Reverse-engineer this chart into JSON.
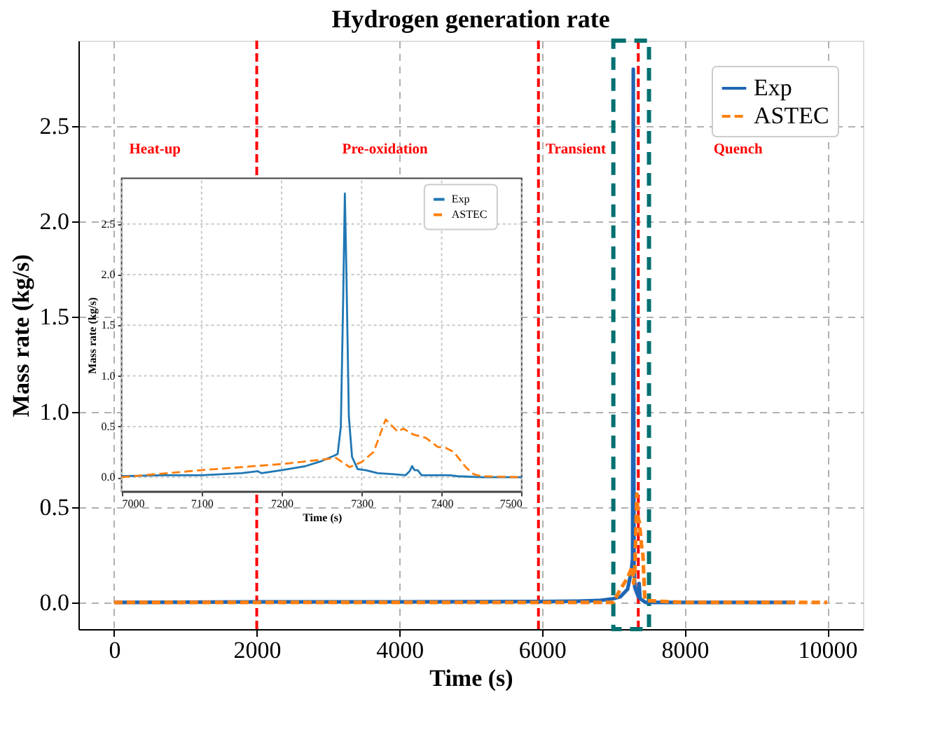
{
  "chart_data": [
    {
      "type": "line",
      "title": "Hydrogen generation rate",
      "xlabel": "Time (s)",
      "ylabel": "Mass rate (kg/s)",
      "xlim": [
        -500,
        10500
      ],
      "ylim": [
        -0.14,
        2.95
      ],
      "xticks": [
        0,
        2000,
        4000,
        6000,
        8000,
        10000
      ],
      "yticks": [
        {
          "value": 0,
          "label": "0.0"
        },
        0.5,
        {
          "value": 1,
          "label": "1.0"
        },
        1.5,
        {
          "value": 2,
          "label": "2.0"
        },
        2.5
      ],
      "grid": true,
      "legend": "top right",
      "marker": "none",
      "series": [
        {
          "name": "Exp",
          "color": "#1f66b4",
          "line_style": "solid",
          "x": [
            0,
            2000,
            4000,
            6000,
            6500,
            6800,
            7000,
            7100,
            7200,
            7250,
            7270,
            7277,
            7280,
            7283,
            7290,
            7300,
            7350,
            7362,
            7375,
            7450,
            8000,
            9550
          ],
          "values": [
            0.0,
            0.003,
            0.003,
            0.005,
            0.007,
            0.01,
            0.02,
            0.03,
            0.07,
            0.16,
            0.23,
            1.8,
            2.8,
            1.6,
            0.2,
            0.08,
            0.03,
            0.1,
            0.02,
            0.0,
            0.0,
            0.0
          ]
        },
        {
          "name": "ASTEC",
          "color": "#ff7f0e",
          "line_style": "dashed",
          "x": [
            0,
            6000,
            6900,
            7000,
            7100,
            7200,
            7268,
            7285,
            7300,
            7330,
            7345,
            7365,
            7395,
            7415,
            7440,
            7450,
            8000,
            10000
          ],
          "values": [
            0.0,
            0.0,
            0.0,
            0.0,
            0.07,
            0.13,
            0.19,
            0.1,
            0.15,
            0.57,
            0.45,
            0.42,
            0.3,
            0.25,
            0.03,
            0.01,
            0.0,
            0.0
          ]
        }
      ],
      "ref_lines": [
        {
          "axis": "x",
          "value": 2000,
          "color": "#ff0000",
          "line_style": "dashed"
        },
        {
          "axis": "x",
          "value": 5950,
          "color": "#ff0000",
          "line_style": "dashed"
        },
        {
          "axis": "x",
          "value": 7350,
          "color": "#ff0000",
          "line_style": "dashed"
        }
      ],
      "annotations": [
        "Heat-up",
        "Pre-oxidation",
        "Transient",
        "Quench"
      ]
    },
    {
      "type": "line",
      "xlabel": "Time (s)",
      "ylabel": "Mass rate (kg/s)",
      "xlim": [
        7000,
        7500
      ],
      "ylim": [
        -0.14,
        2.95
      ],
      "xticks": [
        7000,
        7100,
        7200,
        7300,
        7400,
        7500
      ],
      "yticks": [
        {
          "value": 0,
          "label": "0.0"
        },
        0.5,
        {
          "value": 1,
          "label": "1.0"
        },
        1.5,
        {
          "value": 2,
          "label": "2.0"
        },
        2.5
      ],
      "grid": true,
      "legend": "top right",
      "marker": "none",
      "series": [
        {
          "name": "Exp",
          "color": "#1f77b4",
          "line_style": "solid",
          "x": [
            7000,
            7050,
            7100,
            7150,
            7170,
            7175,
            7200,
            7230,
            7250,
            7265,
            7270,
            7274,
            7277,
            7279,
            7281,
            7284,
            7288,
            7295,
            7305,
            7320,
            7340,
            7355,
            7360,
            7363,
            7366,
            7370,
            7375,
            7400,
            7410,
            7420,
            7450,
            7500
          ],
          "values": [
            0.01,
            0.02,
            0.02,
            0.04,
            0.06,
            0.04,
            0.07,
            0.11,
            0.16,
            0.21,
            0.23,
            0.5,
            1.8,
            2.8,
            2.0,
            0.6,
            0.2,
            0.08,
            0.07,
            0.04,
            0.03,
            0.02,
            0.06,
            0.11,
            0.07,
            0.07,
            0.02,
            0.02,
            0.02,
            0.01,
            0.0,
            0.0
          ]
        },
        {
          "name": "ASTEC",
          "color": "#ff7f0e",
          "line_style": "dashed",
          "x": [
            7000,
            7100,
            7200,
            7268,
            7285,
            7300,
            7315,
            7330,
            7345,
            7352,
            7365,
            7380,
            7395,
            7405,
            7415,
            7430,
            7440,
            7450,
            7500
          ],
          "values": [
            0.0,
            0.07,
            0.13,
            0.19,
            0.1,
            0.15,
            0.25,
            0.57,
            0.45,
            0.48,
            0.42,
            0.39,
            0.3,
            0.29,
            0.25,
            0.1,
            0.03,
            0.01,
            0.0
          ]
        }
      ]
    }
  ]
}
